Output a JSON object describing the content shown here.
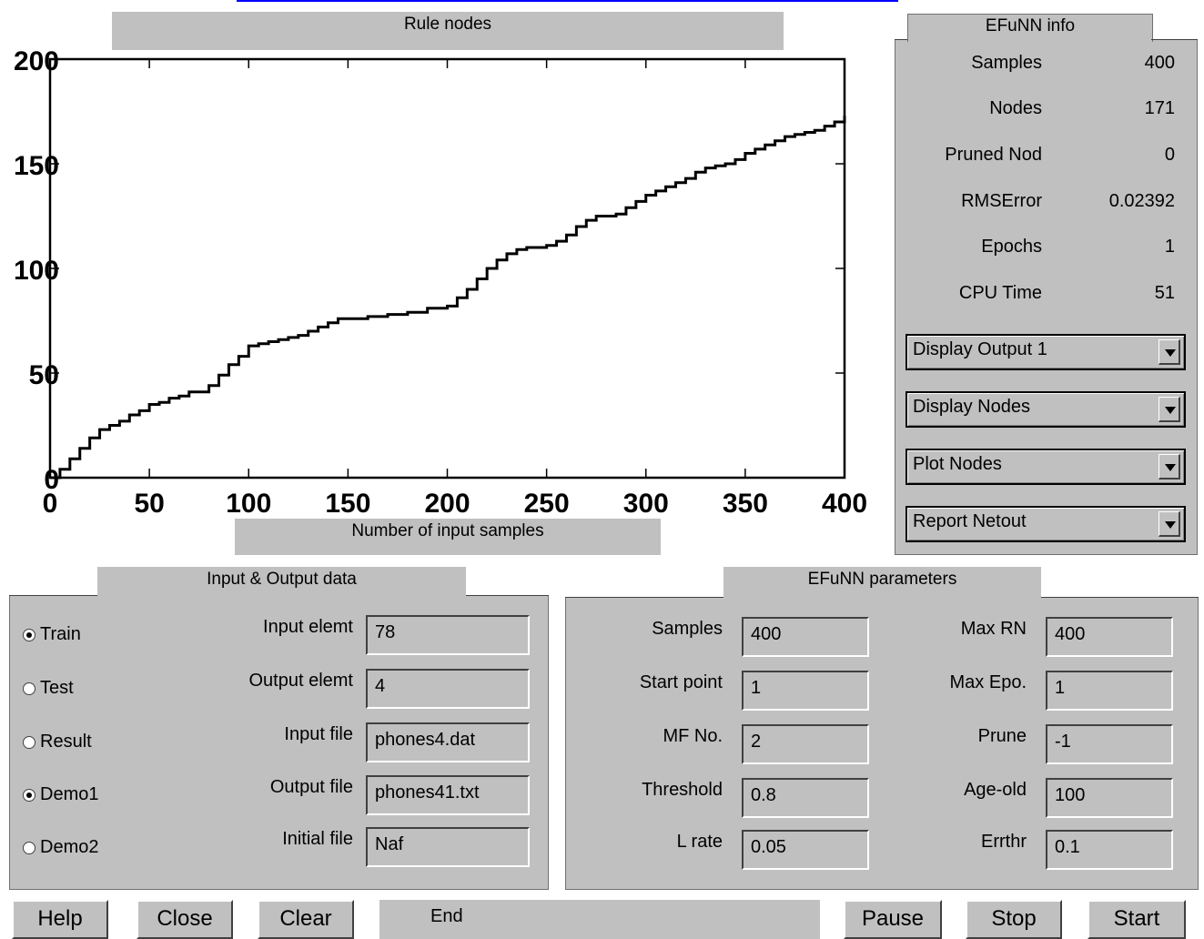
{
  "chart": {
    "title": "Rule nodes",
    "xlabel": "Number of input samples"
  },
  "chart_data": {
    "type": "line",
    "title": "Rule nodes",
    "xlabel": "Number of input samples",
    "ylabel": "",
    "xlim": [
      0,
      400
    ],
    "ylim": [
      0,
      200
    ],
    "xticks": [
      0,
      50,
      100,
      150,
      200,
      250,
      300,
      350,
      400
    ],
    "yticks": [
      0,
      50,
      100,
      150,
      200
    ],
    "grid": false,
    "series": [
      {
        "x": [
          0,
          5,
          10,
          15,
          20,
          25,
          30,
          35,
          40,
          45,
          50,
          55,
          60,
          65,
          70,
          75,
          80,
          85,
          90,
          95,
          100,
          105,
          110,
          115,
          120,
          125,
          130,
          135,
          140,
          145,
          150,
          160,
          170,
          180,
          190,
          200,
          205,
          210,
          215,
          220,
          225,
          230,
          235,
          240,
          250,
          255,
          260,
          265,
          270,
          275,
          280,
          285,
          290,
          295,
          300,
          305,
          310,
          315,
          320,
          325,
          330,
          335,
          340,
          345,
          350,
          355,
          360,
          365,
          370,
          375,
          380,
          385,
          390,
          395,
          400
        ],
        "values": [
          0,
          4,
          9,
          14,
          19,
          23,
          25,
          27,
          30,
          32,
          35,
          36,
          38,
          39,
          41,
          41,
          44,
          49,
          54,
          58,
          63,
          64,
          65,
          66,
          67,
          68,
          70,
          72,
          74,
          76,
          76,
          77,
          78,
          79,
          81,
          82,
          86,
          90,
          95,
          100,
          104,
          107,
          109,
          110,
          111,
          113,
          116,
          120,
          123,
          125,
          125,
          126,
          129,
          132,
          135,
          137,
          139,
          141,
          143,
          146,
          148,
          149,
          150,
          152,
          155,
          157,
          159,
          161,
          163,
          164,
          165,
          166,
          168,
          170,
          173
        ]
      }
    ]
  },
  "info_panel": {
    "title": "EFuNN info",
    "rows": [
      {
        "label": "Samples",
        "value": "400"
      },
      {
        "label": "Nodes",
        "value": "171"
      },
      {
        "label": "Pruned Nod",
        "value": "0"
      },
      {
        "label": "RMSError",
        "value": "0.02392"
      },
      {
        "label": "Epochs",
        "value": "1"
      },
      {
        "label": "CPU Time",
        "value": "51"
      }
    ],
    "dropdowns": [
      "Display Output 1",
      "Display Nodes",
      "Plot Nodes",
      "Report Netout"
    ]
  },
  "io_panel": {
    "title": "Input & Output data",
    "radios": [
      {
        "label": "Train",
        "checked": true
      },
      {
        "label": "Test",
        "checked": false
      },
      {
        "label": "Result",
        "checked": false
      },
      {
        "label": "Demo1",
        "checked": true
      },
      {
        "label": "Demo2",
        "checked": false
      }
    ],
    "fields": [
      {
        "label": "Input elemt",
        "value": "78"
      },
      {
        "label": "Output elemt",
        "value": "4"
      },
      {
        "label": "Input file",
        "value": "phones4.dat"
      },
      {
        "label": "Output file",
        "value": "phones41.txt"
      },
      {
        "label": "Initial file",
        "value": "Naf"
      }
    ]
  },
  "params_panel": {
    "title": "EFuNN parameters",
    "left": [
      {
        "label": "Samples",
        "value": "400"
      },
      {
        "label": "Start point",
        "value": "1"
      },
      {
        "label": "MF No.",
        "value": "2"
      },
      {
        "label": "Threshold",
        "value": "0.8"
      },
      {
        "label": "L rate",
        "value": "0.05"
      }
    ],
    "right": [
      {
        "label": "Max RN",
        "value": "400"
      },
      {
        "label": "Max Epo.",
        "value": "1"
      },
      {
        "label": "Prune",
        "value": "-1"
      },
      {
        "label": "Age-old",
        "value": "100"
      },
      {
        "label": "Errthr",
        "value": "0.1"
      }
    ]
  },
  "toolbar": {
    "help": "Help",
    "close": "Close",
    "clear": "Clear",
    "status": "End",
    "pause": "Pause",
    "stop": "Stop",
    "start": "Start"
  },
  "colors": {
    "panel": "#c0c0c0",
    "link_underline": "#0000ff",
    "plot_line": "#000000"
  }
}
